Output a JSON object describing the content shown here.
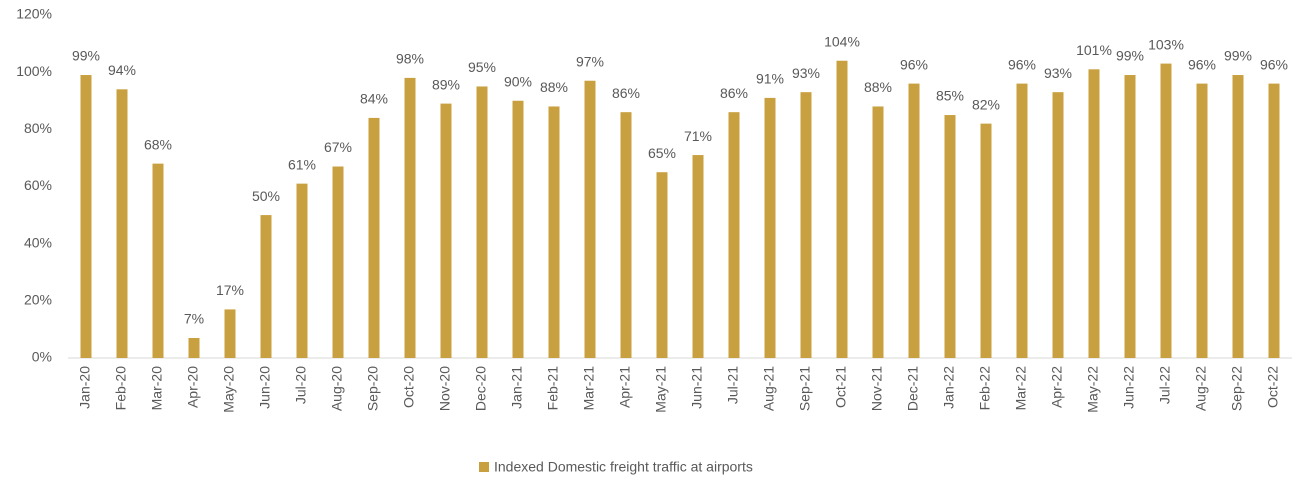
{
  "chart_data": {
    "type": "bar",
    "categories": [
      "Jan-20",
      "Feb-20",
      "Mar-20",
      "Apr-20",
      "May-20",
      "Jun-20",
      "Jul-20",
      "Aug-20",
      "Sep-20",
      "Oct-20",
      "Nov-20",
      "Dec-20",
      "Jan-21",
      "Feb-21",
      "Mar-21",
      "Apr-21",
      "May-21",
      "Jun-21",
      "Jul-21",
      "Aug-21",
      "Sep-21",
      "Oct-21",
      "Nov-21",
      "Dec-21",
      "Jan-22",
      "Feb-22",
      "Mar-22",
      "Apr-22",
      "May-22",
      "Jun-22",
      "Jul-22",
      "Aug-22",
      "Sep-22",
      "Oct-22"
    ],
    "series": [
      {
        "name": "Indexed Domestic freight traffic at airports",
        "color": "#c9a03f",
        "values": [
          99,
          94,
          68,
          7,
          17,
          50,
          61,
          67,
          84,
          98,
          89,
          95,
          90,
          88,
          97,
          86,
          65,
          71,
          86,
          91,
          93,
          104,
          88,
          96,
          85,
          82,
          96,
          93,
          101,
          99,
          103,
          96,
          99,
          96
        ],
        "value_labels": [
          "99%",
          "94%",
          "68%",
          "7%",
          "17%",
          "50%",
          "61%",
          "67%",
          "84%",
          "98%",
          "89%",
          "95%",
          "90%",
          "88%",
          "97%",
          "86%",
          "65%",
          "71%",
          "86%",
          "91%",
          "93%",
          "104%",
          "88%",
          "96%",
          "85%",
          "82%",
          "96%",
          "93%",
          "101%",
          "99%",
          "103%",
          "96%",
          "99%",
          "96%"
        ]
      }
    ],
    "ylim": [
      0,
      120
    ],
    "yticks": [
      {
        "value": 0,
        "label": "0%"
      },
      {
        "value": 20,
        "label": "20%"
      },
      {
        "value": 40,
        "label": "40%"
      },
      {
        "value": 60,
        "label": "60%"
      },
      {
        "value": 80,
        "label": "80%"
      },
      {
        "value": 100,
        "label": "100%"
      },
      {
        "value": 120,
        "label": "120%"
      }
    ],
    "grid": false,
    "legend": "bottom"
  }
}
